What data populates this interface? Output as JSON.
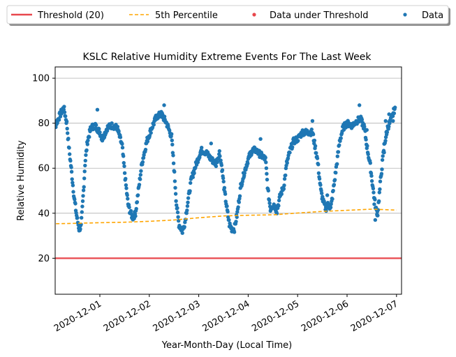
{
  "chart_data": {
    "type": "scatter",
    "title": "KSLC Relative Humidity Extreme Events For The Last Week",
    "xlabel": "Year-Month-Day (Local Time)",
    "ylabel": "Relative Humidity",
    "ylim": [
      4,
      105
    ],
    "xlim": [
      0.0,
      7.0
    ],
    "grid": "horizontal",
    "legend_position": "top",
    "x_ticks": [
      {
        "x": 1,
        "label": "2020-12-01"
      },
      {
        "x": 2,
        "label": "2020-12-02"
      },
      {
        "x": 3,
        "label": "2020-12-03"
      },
      {
        "x": 4,
        "label": "2020-12-04"
      },
      {
        "x": 5,
        "label": "2020-12-05"
      },
      {
        "x": 6,
        "label": "2020-12-06"
      },
      {
        "x": 7,
        "label": "2020-12-07"
      }
    ],
    "y_ticks": [
      20,
      40,
      60,
      80,
      100
    ],
    "legend": [
      {
        "label": "Threshold (20)",
        "style": "line",
        "color": "#e8474c"
      },
      {
        "label": "5th Percentile",
        "style": "dashed",
        "color": "#ffa500"
      },
      {
        "label": "Data under Threshold",
        "style": "dot",
        "color": "#e8474c"
      },
      {
        "label": "Data",
        "style": "dot",
        "color": "#1f77b4"
      }
    ],
    "series": [
      {
        "name": "Threshold (20)",
        "kind": "line",
        "color": "#e8474c",
        "points": [
          [
            0.0,
            20
          ],
          [
            7.0,
            20
          ]
        ]
      },
      {
        "name": "5th Percentile",
        "kind": "dashed",
        "color": "#ffa500",
        "points": [
          [
            0.0,
            35.3
          ],
          [
            0.5,
            35.5
          ],
          [
            1.0,
            35.8
          ],
          [
            1.5,
            36.0
          ],
          [
            2.0,
            36.4
          ],
          [
            2.5,
            37.0
          ],
          [
            3.0,
            38.0
          ],
          [
            3.5,
            38.8
          ],
          [
            4.0,
            39.1
          ],
          [
            4.5,
            39.3
          ],
          [
            5.0,
            40.1
          ],
          [
            5.5,
            40.8
          ],
          [
            6.0,
            41.3
          ],
          [
            6.5,
            41.8
          ],
          [
            7.0,
            41.4
          ]
        ]
      },
      {
        "name": "Data under Threshold",
        "kind": "dots",
        "color": "#e8474c",
        "points": []
      },
      {
        "name": "Data",
        "kind": "dots",
        "color": "#1f77b4",
        "keypoints": [
          [
            0.0,
            78
          ],
          [
            0.1,
            79
          ],
          [
            0.2,
            84
          ],
          [
            0.27,
            87
          ],
          [
            0.33,
            80
          ],
          [
            0.38,
            68
          ],
          [
            0.43,
            58
          ],
          [
            0.48,
            47
          ],
          [
            0.53,
            39
          ],
          [
            0.58,
            33
          ],
          [
            0.62,
            34
          ],
          [
            0.67,
            50
          ],
          [
            0.7,
            62
          ],
          [
            0.75,
            72
          ],
          [
            0.82,
            78
          ],
          [
            0.9,
            79
          ],
          [
            1.0,
            76
          ],
          [
            1.05,
            73
          ],
          [
            1.15,
            78
          ],
          [
            1.25,
            79
          ],
          [
            1.35,
            78
          ],
          [
            1.45,
            70
          ],
          [
            1.52,
            54
          ],
          [
            1.57,
            44
          ],
          [
            1.62,
            40
          ],
          [
            1.67,
            38
          ],
          [
            1.72,
            40
          ],
          [
            1.78,
            50
          ],
          [
            1.85,
            62
          ],
          [
            1.95,
            72
          ],
          [
            2.05,
            78
          ],
          [
            2.15,
            83
          ],
          [
            2.25,
            84
          ],
          [
            2.35,
            80
          ],
          [
            2.45,
            74
          ],
          [
            2.5,
            60
          ],
          [
            2.55,
            44
          ],
          [
            2.6,
            35
          ],
          [
            2.67,
            32
          ],
          [
            2.72,
            36
          ],
          [
            2.78,
            45
          ],
          [
            2.85,
            55
          ],
          [
            2.95,
            62
          ],
          [
            3.05,
            68
          ],
          [
            3.15,
            67
          ],
          [
            3.25,
            64
          ],
          [
            3.35,
            62
          ],
          [
            3.42,
            67
          ],
          [
            3.47,
            60
          ],
          [
            3.52,
            50
          ],
          [
            3.57,
            42
          ],
          [
            3.62,
            35
          ],
          [
            3.67,
            33
          ],
          [
            3.72,
            33
          ],
          [
            3.78,
            40
          ],
          [
            3.85,
            52
          ],
          [
            3.92,
            58
          ],
          [
            4.0,
            64
          ],
          [
            4.08,
            68
          ],
          [
            4.15,
            68
          ],
          [
            4.25,
            66
          ],
          [
            4.35,
            64
          ],
          [
            4.4,
            50
          ],
          [
            4.45,
            42
          ],
          [
            4.52,
            44
          ],
          [
            4.58,
            41
          ],
          [
            4.65,
            48
          ],
          [
            4.72,
            52
          ],
          [
            4.78,
            62
          ],
          [
            4.85,
            68
          ],
          [
            4.92,
            72
          ],
          [
            5.0,
            73
          ],
          [
            5.1,
            76
          ],
          [
            5.2,
            76
          ],
          [
            5.3,
            76
          ],
          [
            5.4,
            64
          ],
          [
            5.47,
            50
          ],
          [
            5.52,
            45
          ],
          [
            5.57,
            42
          ],
          [
            5.62,
            44
          ],
          [
            5.67,
            42
          ],
          [
            5.72,
            50
          ],
          [
            5.78,
            60
          ],
          [
            5.85,
            72
          ],
          [
            5.92,
            78
          ],
          [
            6.0,
            80
          ],
          [
            6.1,
            79
          ],
          [
            6.2,
            81
          ],
          [
            6.27,
            82
          ],
          [
            6.35,
            78
          ],
          [
            6.4,
            70
          ],
          [
            6.47,
            61
          ],
          [
            6.52,
            52
          ],
          [
            6.58,
            42
          ],
          [
            6.62,
            40
          ],
          [
            6.68,
            55
          ],
          [
            6.75,
            70
          ],
          [
            6.82,
            78
          ],
          [
            6.9,
            82
          ],
          [
            6.97,
            87
          ]
        ],
        "outliers": [
          [
            0.95,
            86
          ],
          [
            2.3,
            88
          ],
          [
            3.25,
            71
          ],
          [
            4.25,
            73
          ],
          [
            5.3,
            81
          ],
          [
            6.25,
            88
          ],
          [
            5.6,
            48
          ],
          [
            6.4,
            77
          ],
          [
            6.75,
            67
          ],
          [
            6.85,
            84
          ],
          [
            6.93,
            81
          ],
          [
            6.8,
            75
          ],
          [
            6.78,
            81
          ],
          [
            6.55,
            44
          ],
          [
            6.57,
            37
          ],
          [
            6.61,
            39
          ]
        ]
      }
    ]
  }
}
